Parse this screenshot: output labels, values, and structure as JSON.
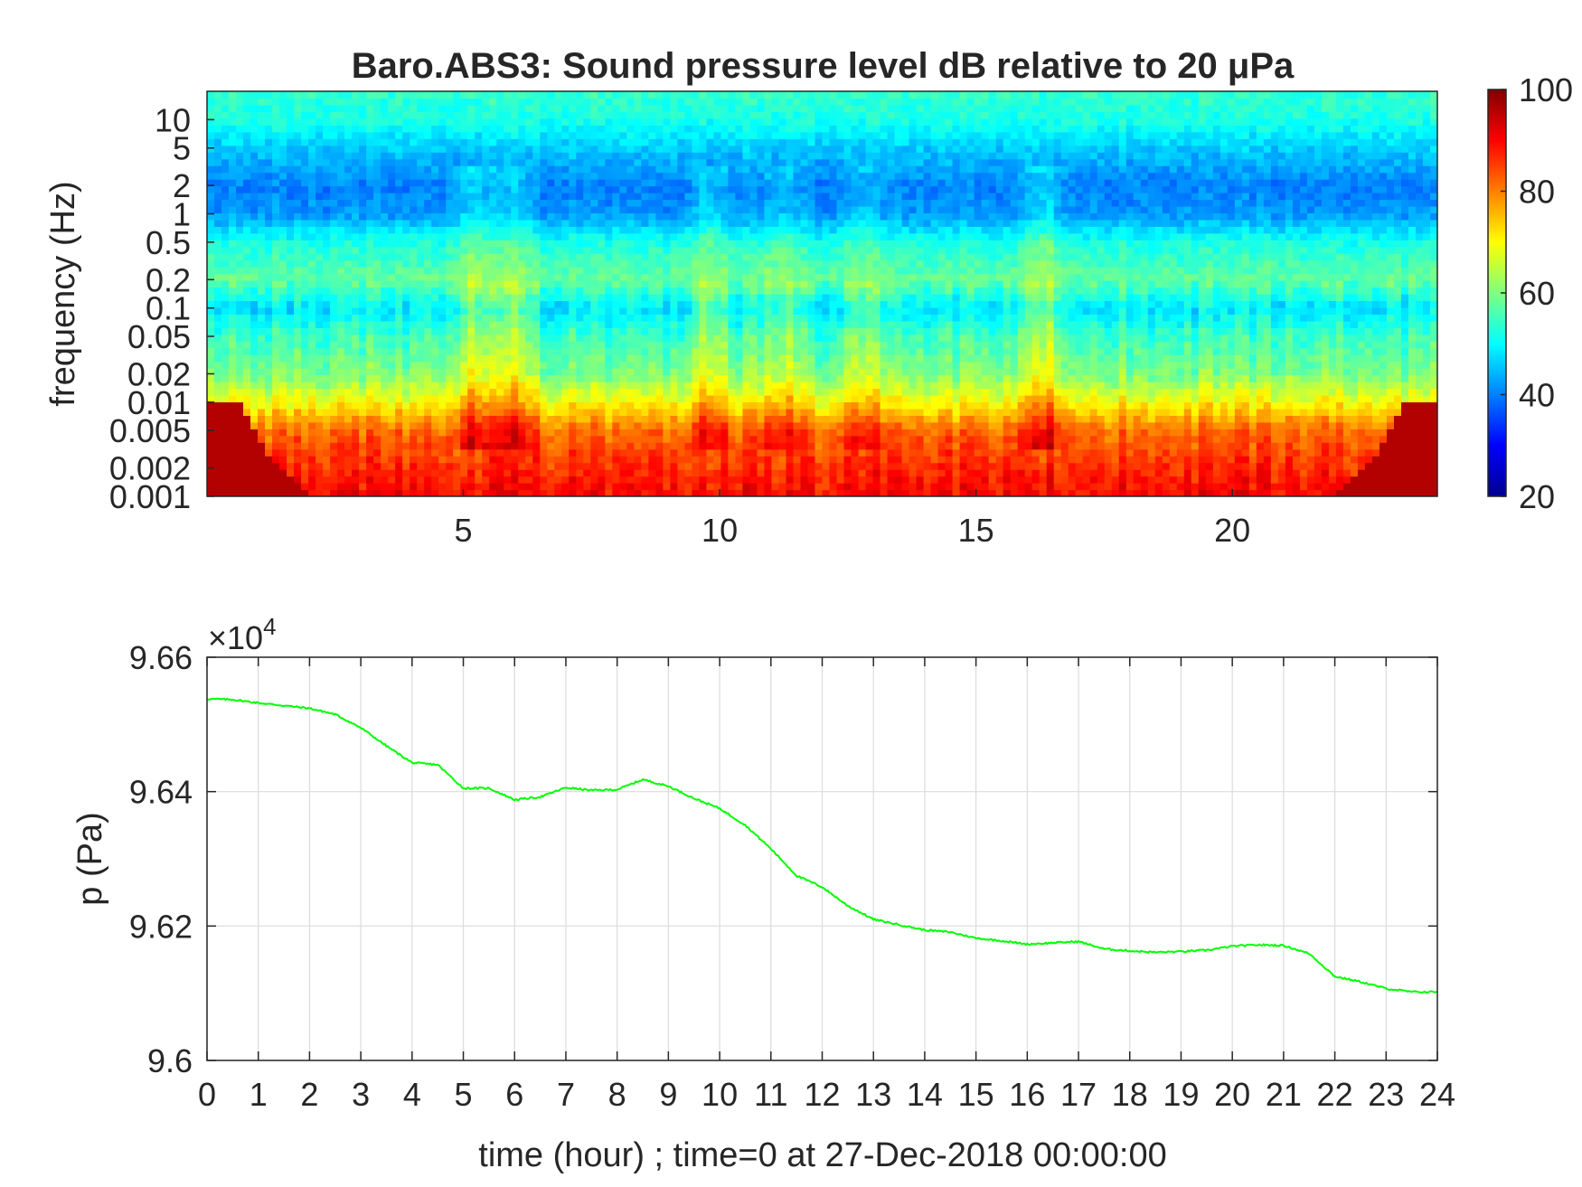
{
  "chart_data": [
    {
      "type": "heatmap",
      "title": "Baro.ABS3: Sound pressure level dB relative to 20 μPa",
      "xlabel": "",
      "ylabel": "frequency (Hz)",
      "xlim": [
        0,
        24
      ],
      "ylim": [
        0.001,
        20
      ],
      "y_scale": "log",
      "x_ticks": [
        5,
        10,
        15,
        20
      ],
      "y_ticks": [
        0.001,
        0.002,
        0.005,
        0.01,
        0.02,
        0.05,
        0.1,
        0.2,
        0.5,
        1,
        2,
        5,
        10
      ],
      "y_tick_labels": [
        "0.001",
        "0.002",
        "0.005",
        "0.01",
        "0.02",
        "0.05",
        "0.1",
        "0.2",
        "0.5",
        "1",
        "2",
        "5",
        "10"
      ],
      "colormap": "jet",
      "colorbar": {
        "min": 20,
        "max": 100,
        "ticks": [
          20,
          40,
          60,
          80,
          100
        ]
      },
      "frequency_levels_db": [
        {
          "f": 0.001,
          "db": 90
        },
        {
          "f": 0.002,
          "db": 87
        },
        {
          "f": 0.005,
          "db": 82
        },
        {
          "f": 0.01,
          "db": 70
        },
        {
          "f": 0.02,
          "db": 60
        },
        {
          "f": 0.05,
          "db": 55
        },
        {
          "f": 0.1,
          "db": 48
        },
        {
          "f": 0.2,
          "db": 58
        },
        {
          "f": 0.5,
          "db": 52
        },
        {
          "f": 1,
          "db": 42
        },
        {
          "f": 2,
          "db": 40
        },
        {
          "f": 5,
          "db": 46
        },
        {
          "f": 10,
          "db": 52
        },
        {
          "f": 20,
          "db": 54
        }
      ],
      "bursts": [
        {
          "t": 5.2,
          "db": 10
        },
        {
          "t": 6.0,
          "db": 8
        },
        {
          "t": 9.8,
          "db": 9
        },
        {
          "t": 11.2,
          "db": 7
        },
        {
          "t": 12.8,
          "db": 6
        },
        {
          "t": 16.3,
          "db": 10
        }
      ]
    },
    {
      "type": "line",
      "title": "",
      "xlabel": "time (hour) ; time=0 at 27-Dec-2018 00:00:00",
      "ylabel": "p (Pa)",
      "exponent_label": "×10",
      "exponent_power": "4",
      "xlim": [
        0,
        24
      ],
      "ylim": [
        9.6,
        9.66
      ],
      "x_ticks": [
        0,
        1,
        2,
        3,
        4,
        5,
        6,
        7,
        8,
        9,
        10,
        11,
        12,
        13,
        14,
        15,
        16,
        17,
        18,
        19,
        20,
        21,
        22,
        23,
        24
      ],
      "y_ticks": [
        9.6,
        9.62,
        9.64,
        9.66
      ],
      "y_tick_labels": [
        "9.6",
        "9.62",
        "9.64",
        "9.66"
      ],
      "grid": true,
      "series": [
        {
          "color": "#00ff00",
          "x": [
            0,
            0.5,
            1,
            1.5,
            2,
            2.5,
            3,
            3.5,
            4,
            4.5,
            5,
            5.5,
            6,
            6.5,
            7,
            7.5,
            8,
            8.5,
            9,
            9.5,
            10,
            10.5,
            11,
            11.5,
            12,
            12.5,
            13,
            13.5,
            14,
            14.5,
            15,
            15.5,
            16,
            16.5,
            17,
            17.5,
            18,
            18.5,
            19,
            19.5,
            20,
            20.5,
            21,
            21.5,
            22,
            22.5,
            23,
            23.5,
            24
          ],
          "y": [
            9.6538,
            9.6537,
            9.6532,
            9.6528,
            9.6524,
            9.6515,
            9.6495,
            9.6468,
            9.6443,
            9.644,
            9.6405,
            9.6405,
            9.6388,
            9.6392,
            9.6406,
            9.6402,
            9.6403,
            9.6418,
            9.6408,
            9.639,
            9.6375,
            9.635,
            9.6315,
            9.6275,
            9.6258,
            9.623,
            9.621,
            9.6202,
            9.6194,
            9.6191,
            9.6182,
            9.6178,
            9.6173,
            9.6175,
            9.6177,
            9.6166,
            9.6163,
            9.6161,
            9.6162,
            9.6164,
            9.617,
            9.6172,
            9.6171,
            9.6159,
            9.6125,
            9.6117,
            9.6107,
            9.6102,
            9.6102
          ]
        }
      ]
    }
  ]
}
